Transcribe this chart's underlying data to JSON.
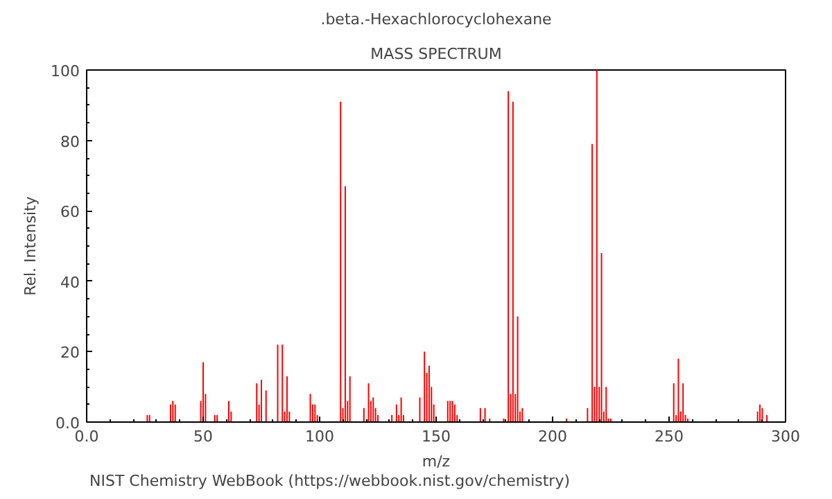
{
  "chart_data": {
    "type": "bar",
    "title": ".beta.-Hexachlorocyclohexane",
    "subtitle": "MASS SPECTRUM",
    "xlabel": "m/z",
    "ylabel": "Rel. Intensity",
    "x": [
      26,
      27,
      36,
      37,
      38,
      49,
      50,
      51,
      55,
      56,
      61,
      62,
      73,
      74,
      75,
      77,
      82,
      84,
      85,
      86,
      87,
      96,
      97,
      98,
      99,
      109,
      110,
      111,
      112,
      113,
      119,
      121,
      122,
      123,
      124,
      125,
      131,
      133,
      134,
      135,
      136,
      143,
      145,
      146,
      147,
      148,
      149,
      155,
      156,
      157,
      158,
      159,
      169,
      171,
      173,
      179,
      181,
      182,
      183,
      184,
      185,
      186,
      187,
      206,
      215,
      217,
      218,
      219,
      220,
      221,
      222,
      223,
      224,
      225,
      252,
      253,
      254,
      255,
      256,
      257,
      258,
      288,
      289,
      290,
      292
    ],
    "values": [
      2,
      2,
      5,
      6,
      5,
      6,
      17,
      8,
      2,
      2,
      6,
      3,
      11,
      5,
      12,
      9,
      22,
      22,
      3,
      13,
      3,
      8,
      5,
      5,
      2,
      91,
      4,
      67,
      6,
      13,
      4,
      11,
      6,
      7,
      4,
      2,
      2,
      5,
      2,
      7,
      2,
      7,
      20,
      14,
      16,
      10,
      5,
      6,
      6,
      6,
      5,
      2,
      4,
      4,
      1,
      1,
      94,
      8,
      91,
      8,
      30,
      3,
      4,
      1,
      4,
      79,
      10,
      100,
      10,
      48,
      3,
      10,
      1,
      1,
      11,
      2,
      18,
      3,
      11,
      2,
      1,
      3,
      5,
      4,
      2
    ],
    "color": "#ff0000",
    "xlim": [
      0,
      300
    ],
    "xticks": [
      {
        "value": 0,
        "label": "0.0"
      },
      50,
      100,
      150,
      200,
      250,
      300
    ],
    "ylim": [
      0,
      100
    ],
    "yticks": [
      {
        "value": 0,
        "label": "0.0"
      },
      20,
      40,
      60,
      80,
      100
    ],
    "grid": false,
    "annotations": [
      "NIST Chemistry WebBook (https://webbook.nist.gov/chemistry)"
    ]
  }
}
